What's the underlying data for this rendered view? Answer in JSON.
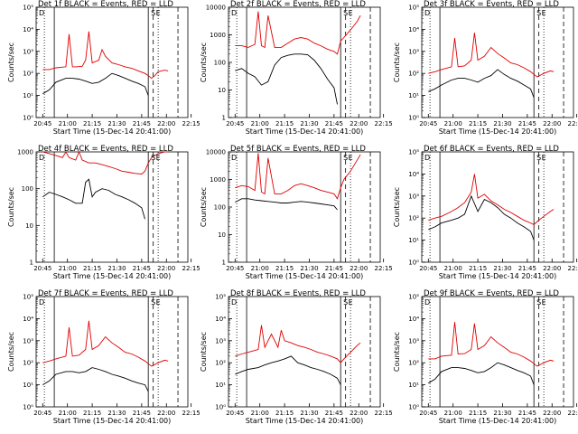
{
  "chart_data": [
    {
      "type": "line",
      "title": "Det 1f BLACK = Events, RED = LLD",
      "xlabel": "Start Time (15-Dec-14 20:41:00)",
      "ylabel": "Counts/sec",
      "y_scale": "log",
      "ylim": [
        1,
        100000
      ],
      "yticks": [
        "10⁰",
        "10¹",
        "10²",
        "10³",
        "10⁴",
        "10⁵"
      ],
      "x_ticks": [
        "20:45",
        "21:00",
        "21:15",
        "21:30",
        "21:45",
        "22:00",
        "22:15"
      ],
      "flags": [
        "D",
        "S",
        "E"
      ],
      "series": [
        {
          "color": "#000000",
          "x": [
            4,
            8,
            12,
            18,
            22,
            26,
            30,
            34,
            38,
            42,
            46,
            50,
            54,
            58,
            62,
            66,
            68,
            72,
            76,
            78,
            80
          ],
          "y": [
            12,
            18,
            40,
            60,
            60,
            55,
            45,
            35,
            40,
            60,
            100,
            80,
            60,
            45,
            35,
            25,
            10,
            null,
            null,
            null,
            null
          ]
        },
        {
          "color": "#e00000",
          "x": [
            4,
            8,
            12,
            18,
            20,
            22,
            24,
            28,
            30,
            32,
            34,
            38,
            40,
            42,
            46,
            50,
            54,
            58,
            62,
            66,
            68,
            70,
            72,
            74,
            76,
            78,
            80
          ],
          "y": [
            150,
            150,
            180,
            200,
            6000,
            200,
            200,
            210,
            400,
            8000,
            300,
            400,
            1200,
            600,
            300,
            250,
            200,
            170,
            130,
            100,
            80,
            60,
            80,
            120,
            130,
            140,
            130
          ]
        }
      ]
    },
    {
      "type": "line",
      "title": "Det 2f BLACK = Events, RED = LLD",
      "xlabel": "Start Time (15-Dec-14 20:41:00)",
      "ylabel": "Counts/sec",
      "y_scale": "log",
      "ylim": [
        1,
        10000
      ],
      "yticks": [
        "1",
        "10",
        "100",
        "1000",
        "10000"
      ],
      "x_ticks": [
        "20:45",
        "21:00",
        "21:15",
        "21:30",
        "21:45",
        "22:00",
        "22:15"
      ],
      "flags": [
        "D",
        "S",
        "E"
      ],
      "series": [
        {
          "color": "#000000",
          "x": [
            4,
            8,
            12,
            16,
            20,
            24,
            28,
            32,
            36,
            40,
            44,
            48,
            52,
            56,
            60,
            64,
            66,
            68
          ],
          "y": [
            50,
            60,
            40,
            30,
            15,
            20,
            80,
            150,
            180,
            200,
            200,
            190,
            120,
            60,
            25,
            12,
            3,
            null
          ]
        },
        {
          "color": "#e00000",
          "x": [
            4,
            8,
            12,
            16,
            18,
            20,
            22,
            24,
            28,
            32,
            36,
            40,
            44,
            48,
            52,
            56,
            60,
            64,
            66,
            68,
            70,
            74,
            78,
            80
          ],
          "y": [
            400,
            400,
            350,
            450,
            7000,
            400,
            350,
            5000,
            350,
            350,
            500,
            700,
            800,
            700,
            500,
            400,
            300,
            250,
            200,
            600,
            800,
            1500,
            3000,
            5000
          ]
        }
      ]
    },
    {
      "type": "line",
      "title": "Det 3f BLACK = Events, RED = LLD",
      "xlabel": "Start Time (15-Dec-14 20:41:00)",
      "ylabel": "Counts/sec",
      "y_scale": "log",
      "ylim": [
        1,
        100000
      ],
      "yticks": [
        "10⁰",
        "10¹",
        "10²",
        "10³",
        "10⁴",
        "10⁵"
      ],
      "x_ticks": [
        "20:45",
        "21:00",
        "21:15",
        "21:30",
        "21:45",
        "22:00",
        "22:15"
      ],
      "flags": [
        "D",
        "S",
        "E"
      ],
      "series": [
        {
          "color": "#000000",
          "x": [
            4,
            8,
            12,
            18,
            22,
            26,
            30,
            34,
            38,
            42,
            46,
            50,
            54,
            58,
            62,
            66,
            68
          ],
          "y": [
            15,
            20,
            30,
            50,
            60,
            60,
            50,
            40,
            60,
            80,
            150,
            90,
            60,
            45,
            30,
            20,
            8
          ]
        },
        {
          "color": "#e00000",
          "x": [
            4,
            8,
            12,
            18,
            20,
            22,
            26,
            30,
            32,
            34,
            38,
            42,
            46,
            50,
            54,
            58,
            62,
            66,
            68,
            70,
            74,
            78,
            80
          ],
          "y": [
            100,
            120,
            150,
            200,
            4000,
            200,
            220,
            400,
            7000,
            400,
            600,
            1500,
            800,
            500,
            300,
            250,
            180,
            120,
            90,
            70,
            100,
            130,
            120
          ]
        }
      ]
    },
    {
      "type": "line",
      "title": "Det 4f BLACK = Events, RED = LLD",
      "xlabel": "Start Time (15-Dec-14 20:41:00)",
      "ylabel": "Counts/sec",
      "y_scale": "log",
      "ylim": [
        1,
        1000
      ],
      "yticks": [
        "1",
        "10",
        "100",
        "1000"
      ],
      "x_ticks": [
        "20:45",
        "21:00",
        "21:15",
        "21:30",
        "21:45",
        "22:00",
        "22:15"
      ],
      "flags": [
        "D",
        "S",
        "E"
      ],
      "series": [
        {
          "color": "#000000",
          "x": [
            4,
            8,
            12,
            16,
            20,
            24,
            28,
            30,
            32,
            34,
            36,
            40,
            44,
            48,
            52,
            56,
            60,
            64,
            66
          ],
          "y": [
            60,
            80,
            70,
            60,
            50,
            40,
            40,
            150,
            180,
            60,
            80,
            100,
            90,
            70,
            60,
            50,
            40,
            30,
            15
          ]
        },
        {
          "color": "#e00000",
          "x": [
            4,
            8,
            12,
            16,
            18,
            20,
            24,
            26,
            28,
            32,
            36,
            40,
            44,
            48,
            52,
            56,
            60,
            64,
            66,
            68,
            70,
            74,
            78,
            80
          ],
          "y": [
            1000,
            900,
            800,
            700,
            1000,
            700,
            600,
            1000,
            600,
            500,
            500,
            450,
            400,
            350,
            300,
            280,
            260,
            250,
            300,
            500,
            700,
            900,
            1000,
            1000
          ]
        }
      ]
    },
    {
      "type": "line",
      "title": "Det 5f BLACK = Events, RED = LLD",
      "xlabel": "Start Time (15-Dec-14 20:41:00)",
      "ylabel": "Counts/sec",
      "y_scale": "log",
      "ylim": [
        1,
        10000
      ],
      "yticks": [
        "1",
        "10",
        "100",
        "1000",
        "10000"
      ],
      "x_ticks": [
        "20:45",
        "21:00",
        "21:15",
        "21:30",
        "21:45",
        "22:00",
        "22:15"
      ],
      "flags": [
        "D",
        "S",
        "E"
      ],
      "series": [
        {
          "color": "#000000",
          "x": [
            4,
            8,
            12,
            16,
            20,
            24,
            28,
            32,
            36,
            40,
            44,
            48,
            52,
            56,
            60,
            64,
            66
          ],
          "y": [
            150,
            200,
            200,
            180,
            170,
            160,
            150,
            140,
            140,
            150,
            160,
            150,
            140,
            130,
            120,
            110,
            80
          ]
        },
        {
          "color": "#e00000",
          "x": [
            4,
            8,
            12,
            16,
            18,
            20,
            22,
            24,
            28,
            32,
            36,
            40,
            44,
            48,
            52,
            56,
            60,
            64,
            66,
            68,
            70,
            74,
            78,
            80
          ],
          "y": [
            500,
            600,
            550,
            400,
            9000,
            350,
            300,
            6000,
            300,
            300,
            400,
            600,
            700,
            600,
            500,
            400,
            350,
            300,
            200,
            500,
            1000,
            2000,
            5000,
            8000
          ]
        }
      ]
    },
    {
      "type": "line",
      "title": "Det 6f BLACK = Events, RED = LLD",
      "xlabel": "Start Time (15-Dec-14 20:41:00)",
      "ylabel": "Counts/sec",
      "y_scale": "log",
      "ylim": [
        1,
        100000
      ],
      "yticks": [
        "10⁰",
        "10¹",
        "10²",
        "10³",
        "10⁴",
        "10⁵"
      ],
      "x_ticks": [
        "20:45",
        "21:00",
        "21:15",
        "21:30",
        "21:45",
        "22:00",
        "22:15"
      ],
      "flags": [
        "D",
        "S",
        "E"
      ],
      "series": [
        {
          "color": "#000000",
          "x": [
            4,
            8,
            12,
            18,
            22,
            26,
            30,
            34,
            38,
            42,
            46,
            50,
            54,
            58,
            62,
            66,
            68
          ],
          "y": [
            30,
            40,
            60,
            80,
            100,
            150,
            1000,
            200,
            700,
            500,
            300,
            150,
            100,
            60,
            40,
            25,
            10
          ]
        },
        {
          "color": "#e00000",
          "x": [
            4,
            8,
            12,
            18,
            22,
            26,
            30,
            32,
            34,
            38,
            42,
            46,
            50,
            54,
            58,
            62,
            66,
            68,
            70,
            74,
            78,
            80
          ],
          "y": [
            80,
            100,
            120,
            200,
            300,
            500,
            1500,
            10000,
            800,
            1200,
            600,
            400,
            250,
            180,
            120,
            80,
            60,
            50,
            70,
            120,
            200,
            250
          ]
        }
      ]
    },
    {
      "type": "line",
      "title": "Det 7f BLACK = Events, RED = LLD",
      "xlabel": "Start Time (15-Dec-14 20:41:00)",
      "ylabel": "Counts/sec",
      "y_scale": "log",
      "ylim": [
        1,
        100000
      ],
      "yticks": [
        "10⁰",
        "10¹",
        "10²",
        "10³",
        "10⁴",
        "10⁵"
      ],
      "x_ticks": [
        "20:45",
        "21:00",
        "21:15",
        "21:30",
        "21:45",
        "22:00",
        "22:15"
      ],
      "flags": [
        "D",
        "S",
        "E"
      ],
      "series": [
        {
          "color": "#000000",
          "x": [
            4,
            8,
            12,
            18,
            22,
            26,
            30,
            34,
            38,
            42,
            46,
            50,
            54,
            58,
            62,
            66,
            68
          ],
          "y": [
            10,
            15,
            30,
            40,
            40,
            35,
            40,
            60,
            50,
            40,
            30,
            25,
            20,
            15,
            12,
            10,
            5
          ]
        },
        {
          "color": "#e00000",
          "x": [
            4,
            8,
            12,
            18,
            20,
            22,
            26,
            30,
            32,
            34,
            38,
            42,
            46,
            50,
            54,
            58,
            62,
            66,
            68,
            70,
            74,
            78,
            80
          ],
          "y": [
            100,
            120,
            150,
            200,
            4000,
            200,
            220,
            400,
            8000,
            400,
            600,
            1500,
            800,
            500,
            300,
            250,
            180,
            120,
            90,
            70,
            100,
            130,
            120
          ]
        }
      ]
    },
    {
      "type": "line",
      "title": "Det 8f BLACK = Events, RED = LLD",
      "xlabel": "Start Time (15-Dec-14 20:41:00)",
      "ylabel": "Counts/sec",
      "y_scale": "log",
      "ylim": [
        1,
        100000
      ],
      "yticks": [
        "10⁰",
        "10¹",
        "10²",
        "10³",
        "10⁴",
        "10⁵"
      ],
      "x_ticks": [
        "20:45",
        "21:00",
        "21:15",
        "21:30",
        "21:45",
        "22:00",
        "22:15"
      ],
      "flags": [
        "D",
        "S",
        "E"
      ],
      "series": [
        {
          "color": "#000000",
          "x": [
            4,
            8,
            12,
            18,
            22,
            26,
            30,
            34,
            38,
            42,
            46,
            50,
            54,
            58,
            62,
            66,
            68
          ],
          "y": [
            30,
            40,
            50,
            60,
            80,
            100,
            120,
            150,
            200,
            100,
            80,
            60,
            50,
            40,
            30,
            20,
            10
          ]
        },
        {
          "color": "#e00000",
          "x": [
            4,
            8,
            12,
            18,
            20,
            22,
            26,
            30,
            32,
            34,
            38,
            42,
            46,
            50,
            54,
            58,
            62,
            66,
            68,
            70,
            74,
            78,
            80
          ],
          "y": [
            200,
            250,
            300,
            400,
            5000,
            500,
            2000,
            500,
            3000,
            1000,
            800,
            600,
            500,
            400,
            300,
            250,
            200,
            150,
            100,
            150,
            300,
            600,
            800
          ]
        }
      ]
    },
    {
      "type": "line",
      "title": "Det 9f BLACK = Events, RED = LLD",
      "xlabel": "Start Time (15-Dec-14 20:41:00)",
      "ylabel": "Counts/sec",
      "y_scale": "log",
      "ylim": [
        1,
        100000
      ],
      "yticks": [
        "10⁰",
        "10¹",
        "10²",
        "10³",
        "10⁴",
        "10⁵"
      ],
      "x_ticks": [
        "20:45",
        "21:00",
        "21:15",
        "21:30",
        "21:45",
        "22:00",
        "22:15"
      ],
      "flags": [
        "D",
        "S",
        "E"
      ],
      "series": [
        {
          "color": "#000000",
          "x": [
            4,
            8,
            12,
            18,
            22,
            26,
            30,
            34,
            38,
            42,
            46,
            50,
            54,
            58,
            62,
            66,
            68
          ],
          "y": [
            12,
            18,
            40,
            60,
            60,
            55,
            45,
            35,
            40,
            60,
            100,
            80,
            60,
            45,
            35,
            25,
            10
          ]
        },
        {
          "color": "#e00000",
          "x": [
            4,
            8,
            12,
            18,
            20,
            22,
            26,
            30,
            32,
            34,
            38,
            42,
            46,
            50,
            54,
            58,
            62,
            66,
            68,
            70,
            74,
            78,
            80
          ],
          "y": [
            150,
            150,
            200,
            220,
            7000,
            250,
            260,
            400,
            6000,
            400,
            600,
            1500,
            800,
            500,
            300,
            250,
            180,
            120,
            90,
            70,
            100,
            130,
            120
          ]
        }
      ]
    }
  ]
}
